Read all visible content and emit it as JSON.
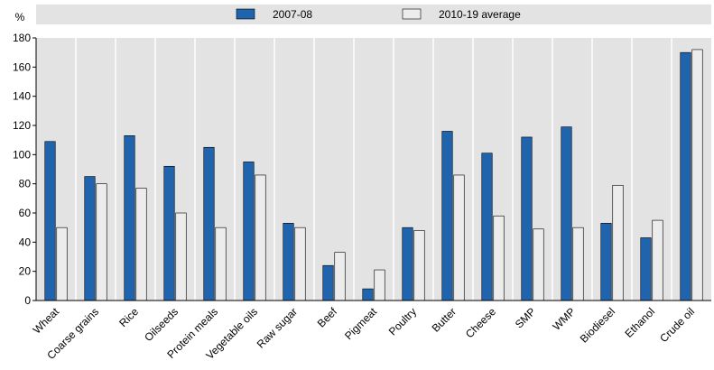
{
  "chart_data": {
    "type": "bar",
    "ylabel": "%",
    "ylim": [
      0,
      180
    ],
    "yticks": [
      0,
      20,
      40,
      60,
      80,
      100,
      120,
      140,
      160,
      180
    ],
    "grid": "vertical separators",
    "legend_position": "top",
    "categories": [
      "Wheat",
      "Coarse grains",
      "Rice",
      "Oilseeds",
      "Protein meals",
      "Vegetable oils",
      "Raw sugar",
      "Beef",
      "Pigmeat",
      "Poultry",
      "Butter",
      "Cheese",
      "SMP",
      "WMP",
      "Biodiesel",
      "Ethanol",
      "Crude oil"
    ],
    "series": [
      {
        "name": "2007-08",
        "color": "#1f64ad",
        "values": [
          109,
          85,
          113,
          92,
          105,
          95,
          53,
          24,
          8,
          50,
          116,
          101,
          112,
          119,
          53,
          43,
          170
        ]
      },
      {
        "name": "2010-19 average",
        "color": "#ececec",
        "values": [
          50,
          80,
          77,
          60,
          50,
          86,
          50,
          33,
          21,
          48,
          86,
          58,
          49,
          50,
          79,
          55,
          172
        ]
      }
    ]
  }
}
